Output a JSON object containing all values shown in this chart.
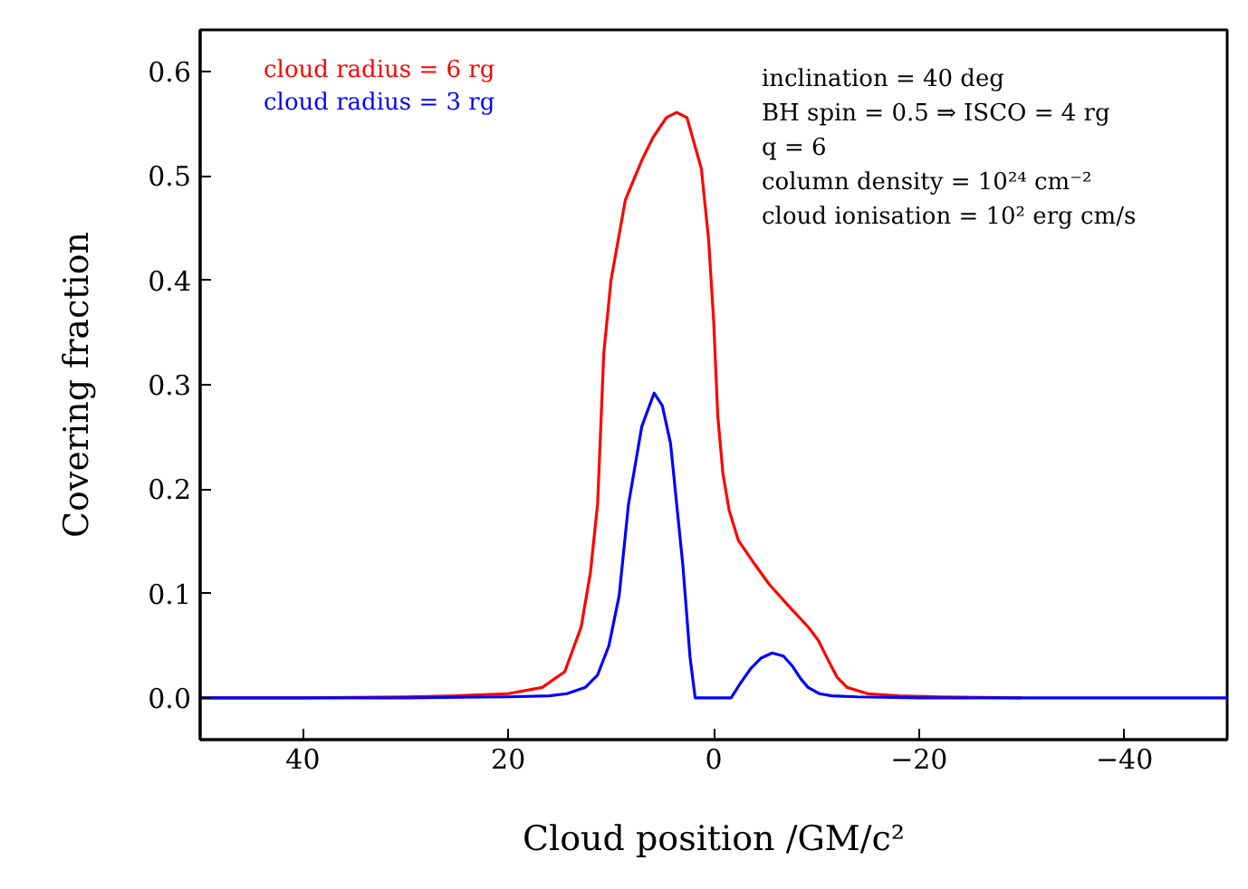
{
  "chart_data": {
    "type": "line",
    "xlabel": "Cloud position /GM/c²",
    "ylabel": "Covering fraction",
    "xlim": [
      50,
      -50
    ],
    "ylim": [
      -0.04,
      0.64
    ],
    "xticks": [
      40,
      20,
      0,
      {
        "value": -20,
        "label": "−20"
      },
      {
        "value": -40,
        "label": "−40"
      }
    ],
    "yticks": [
      {
        "value": 0,
        "label": "0.0"
      },
      0.1,
      0.2,
      0.3,
      0.4,
      0.5,
      0.6
    ],
    "grid": false,
    "line_style": "solid",
    "marker": "none",
    "annotations": [
      "inclination = 40 deg",
      "BH spin = 0.5 ⇒ ISCO = 4 rg",
      "q = 6",
      "column density = 10²⁴ cm⁻²",
      "cloud ionisation = 10² erg cm/s"
    ],
    "series": [
      {
        "name": "cloud radius = 6 rg",
        "color": "#ff0000",
        "x": [
          50,
          40,
          30,
          25,
          20,
          16.7,
          14.5,
          12.9,
          12.0,
          11.3,
          10.7,
          10.0,
          8.6,
          7.0,
          5.9,
          4.6,
          3.6,
          2.6,
          1.2,
          0.5,
          0,
          -0.4,
          -0.9,
          -1.5,
          -2.4,
          -4.0,
          -5.4,
          -7.3,
          -9.2,
          -10.2,
          -11.0,
          -12.0,
          -13.0,
          -15.0,
          -18.0,
          -22,
          -30
        ],
        "values": [
          0,
          0,
          0.001,
          0.002,
          0.004,
          0.01,
          0.025,
          0.068,
          0.12,
          0.186,
          0.33,
          0.4,
          0.477,
          0.515,
          0.537,
          0.556,
          0.561,
          0.556,
          0.507,
          0.44,
          0.361,
          0.27,
          0.215,
          0.18,
          0.151,
          0.128,
          0.109,
          0.088,
          0.068,
          0.055,
          0.039,
          0.02,
          0.01,
          0.004,
          0.002,
          0.001,
          0
        ]
      },
      {
        "name": "cloud radius = 3 rg",
        "color": "#0000ff",
        "x": [
          50,
          40,
          30,
          20,
          16.0,
          14.3,
          12.5,
          11.3,
          10.2,
          9.2,
          8.3,
          7.0,
          5.8,
          5.0,
          4.2,
          3.0,
          2.3,
          1.8,
          -1.7,
          -2.6,
          -3.6,
          -4.6,
          -5.7,
          -6.8,
          -7.7,
          -8.5,
          -9.2,
          -10.3,
          -11.5,
          -14,
          -20,
          -30,
          -40,
          -50
        ],
        "values": [
          0,
          0,
          0,
          0.001,
          0.002,
          0.004,
          0.01,
          0.022,
          0.05,
          0.098,
          0.185,
          0.26,
          0.292,
          0.28,
          0.244,
          0.127,
          0.039,
          0,
          0,
          0.014,
          0.028,
          0.038,
          0.043,
          0.04,
          0.03,
          0.018,
          0.01,
          0.004,
          0.002,
          0.001,
          0,
          0,
          0,
          0
        ]
      }
    ]
  }
}
